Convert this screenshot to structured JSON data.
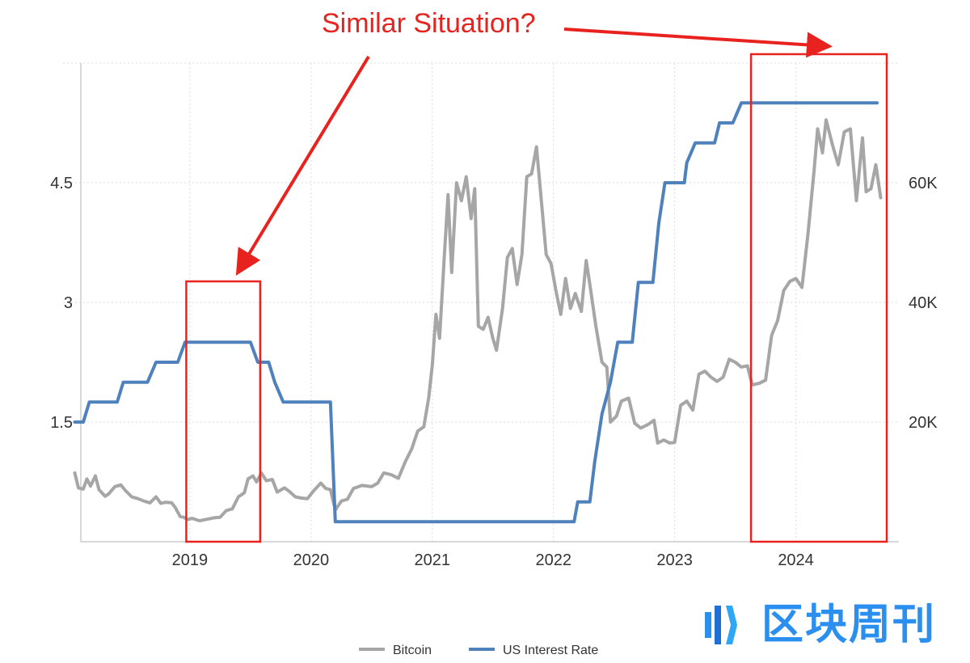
{
  "chart_data": {
    "type": "line",
    "title": "",
    "annotation": "Similar Situation?",
    "x_ticks": [
      "2019",
      "2020",
      "2021",
      "2022",
      "2023",
      "2024"
    ],
    "xlim": [
      2018.1,
      2024.85
    ],
    "left_axis": {
      "ticks": [
        "1.5",
        "3",
        "4.5"
      ],
      "tick_values": [
        1.5,
        3,
        4.5
      ],
      "ylim": [
        0,
        6
      ]
    },
    "right_axis": {
      "ticks": [
        "20K",
        "40K",
        "60K"
      ],
      "tick_values": [
        20000,
        40000,
        60000
      ],
      "ylim": [
        0,
        80000
      ]
    },
    "grid": true,
    "legend_position": "bottom-center",
    "highlight_ranges": [
      [
        2018.97,
        2019.58
      ],
      [
        2023.63,
        2024.75
      ]
    ],
    "series": [
      {
        "name": "Bitcoin",
        "axis": "right",
        "color": "#a6a6a6",
        "points": [
          [
            2018.05,
            11500
          ],
          [
            2018.08,
            9000
          ],
          [
            2018.12,
            8800
          ],
          [
            2018.15,
            10500
          ],
          [
            2018.18,
            9300
          ],
          [
            2018.22,
            11000
          ],
          [
            2018.25,
            8700
          ],
          [
            2018.3,
            7600
          ],
          [
            2018.33,
            8000
          ],
          [
            2018.38,
            9200
          ],
          [
            2018.43,
            9500
          ],
          [
            2018.47,
            8500
          ],
          [
            2018.52,
            7500
          ],
          [
            2018.57,
            7200
          ],
          [
            2018.62,
            6800
          ],
          [
            2018.67,
            6500
          ],
          [
            2018.72,
            7500
          ],
          [
            2018.76,
            6400
          ],
          [
            2018.8,
            6600
          ],
          [
            2018.85,
            6500
          ],
          [
            2018.88,
            5700
          ],
          [
            2018.92,
            4200
          ],
          [
            2018.95,
            4100
          ],
          [
            2018.98,
            3700
          ],
          [
            2019.02,
            3900
          ],
          [
            2019.08,
            3500
          ],
          [
            2019.15,
            3800
          ],
          [
            2019.2,
            4000
          ],
          [
            2019.25,
            4100
          ],
          [
            2019.3,
            5200
          ],
          [
            2019.35,
            5500
          ],
          [
            2019.4,
            7500
          ],
          [
            2019.45,
            8200
          ],
          [
            2019.48,
            10500
          ],
          [
            2019.52,
            11000
          ],
          [
            2019.55,
            10000
          ],
          [
            2019.59,
            11500
          ],
          [
            2019.63,
            10200
          ],
          [
            2019.68,
            10400
          ],
          [
            2019.72,
            8300
          ],
          [
            2019.78,
            9000
          ],
          [
            2019.82,
            8400
          ],
          [
            2019.87,
            7500
          ],
          [
            2019.92,
            7300
          ],
          [
            2019.97,
            7200
          ],
          [
            2020.02,
            8500
          ],
          [
            2020.08,
            9800
          ],
          [
            2020.12,
            8900
          ],
          [
            2020.16,
            8700
          ],
          [
            2020.2,
            5300
          ],
          [
            2020.25,
            6800
          ],
          [
            2020.3,
            7100
          ],
          [
            2020.35,
            8900
          ],
          [
            2020.42,
            9400
          ],
          [
            2020.5,
            9200
          ],
          [
            2020.55,
            9800
          ],
          [
            2020.6,
            11500
          ],
          [
            2020.66,
            11200
          ],
          [
            2020.72,
            10600
          ],
          [
            2020.78,
            13500
          ],
          [
            2020.83,
            15500
          ],
          [
            2020.88,
            18500
          ],
          [
            2020.93,
            19200
          ],
          [
            2020.97,
            24000
          ],
          [
            2021.0,
            29500
          ],
          [
            2021.03,
            38000
          ],
          [
            2021.06,
            34000
          ],
          [
            2021.1,
            48000
          ],
          [
            2021.13,
            58000
          ],
          [
            2021.16,
            45000
          ],
          [
            2021.2,
            60000
          ],
          [
            2021.24,
            57000
          ],
          [
            2021.28,
            61000
          ],
          [
            2021.32,
            54000
          ],
          [
            2021.35,
            59000
          ],
          [
            2021.38,
            36000
          ],
          [
            2021.42,
            35500
          ],
          [
            2021.46,
            37500
          ],
          [
            2021.5,
            34000
          ],
          [
            2021.53,
            32000
          ],
          [
            2021.58,
            39000
          ],
          [
            2021.62,
            47500
          ],
          [
            2021.66,
            49000
          ],
          [
            2021.7,
            43000
          ],
          [
            2021.74,
            48000
          ],
          [
            2021.78,
            61000
          ],
          [
            2021.82,
            61500
          ],
          [
            2021.86,
            66000
          ],
          [
            2021.9,
            57000
          ],
          [
            2021.94,
            48000
          ],
          [
            2021.98,
            46500
          ],
          [
            2022.02,
            42000
          ],
          [
            2022.06,
            38000
          ],
          [
            2022.1,
            44000
          ],
          [
            2022.14,
            39000
          ],
          [
            2022.18,
            41500
          ],
          [
            2022.23,
            38500
          ],
          [
            2022.27,
            47000
          ],
          [
            2022.3,
            43000
          ],
          [
            2022.35,
            36000
          ],
          [
            2022.4,
            30000
          ],
          [
            2022.44,
            29200
          ],
          [
            2022.47,
            20000
          ],
          [
            2022.52,
            21000
          ],
          [
            2022.56,
            23500
          ],
          [
            2022.62,
            24000
          ],
          [
            2022.67,
            19800
          ],
          [
            2022.72,
            19000
          ],
          [
            2022.78,
            19600
          ],
          [
            2022.83,
            20300
          ],
          [
            2022.86,
            16500
          ],
          [
            2022.91,
            17000
          ],
          [
            2022.96,
            16500
          ],
          [
            2023.0,
            16600
          ],
          [
            2023.05,
            22800
          ],
          [
            2023.1,
            23500
          ],
          [
            2023.15,
            22000
          ],
          [
            2023.2,
            28000
          ],
          [
            2023.25,
            28500
          ],
          [
            2023.3,
            27500
          ],
          [
            2023.35,
            26800
          ],
          [
            2023.4,
            27500
          ],
          [
            2023.45,
            30500
          ],
          [
            2023.5,
            30000
          ],
          [
            2023.55,
            29200
          ],
          [
            2023.6,
            29400
          ],
          [
            2023.64,
            26200
          ],
          [
            2023.7,
            26500
          ],
          [
            2023.75,
            27000
          ],
          [
            2023.8,
            34500
          ],
          [
            2023.85,
            37000
          ],
          [
            2023.9,
            42000
          ],
          [
            2023.95,
            43500
          ],
          [
            2024.0,
            44000
          ],
          [
            2024.05,
            42500
          ],
          [
            2024.1,
            51500
          ],
          [
            2024.15,
            62000
          ],
          [
            2024.18,
            69000
          ],
          [
            2024.22,
            65000
          ],
          [
            2024.25,
            70500
          ],
          [
            2024.3,
            66500
          ],
          [
            2024.35,
            63000
          ],
          [
            2024.4,
            68500
          ],
          [
            2024.45,
            69000
          ],
          [
            2024.5,
            57000
          ],
          [
            2024.55,
            67500
          ],
          [
            2024.58,
            58500
          ],
          [
            2024.62,
            59000
          ],
          [
            2024.66,
            63000
          ],
          [
            2024.7,
            57500
          ]
        ]
      },
      {
        "name": "US Interest Rate",
        "axis": "left",
        "color": "#4f81bd",
        "points": [
          [
            2018.05,
            1.5
          ],
          [
            2018.12,
            1.5
          ],
          [
            2018.17,
            1.75
          ],
          [
            2018.4,
            1.75
          ],
          [
            2018.45,
            2.0
          ],
          [
            2018.65,
            2.0
          ],
          [
            2018.72,
            2.25
          ],
          [
            2018.9,
            2.25
          ],
          [
            2018.96,
            2.5
          ],
          [
            2019.5,
            2.5
          ],
          [
            2019.56,
            2.25
          ],
          [
            2019.65,
            2.25
          ],
          [
            2019.7,
            2.0
          ],
          [
            2019.77,
            1.75
          ],
          [
            2020.16,
            1.75
          ],
          [
            2020.2,
            0.25
          ],
          [
            2022.17,
            0.25
          ],
          [
            2022.2,
            0.5
          ],
          [
            2022.3,
            0.5
          ],
          [
            2022.34,
            1.0
          ],
          [
            2022.4,
            1.6
          ],
          [
            2022.47,
            2.0
          ],
          [
            2022.53,
            2.5
          ],
          [
            2022.65,
            2.5
          ],
          [
            2022.7,
            3.25
          ],
          [
            2022.82,
            3.25
          ],
          [
            2022.87,
            4.0
          ],
          [
            2022.92,
            4.5
          ],
          [
            2023.08,
            4.5
          ],
          [
            2023.1,
            4.75
          ],
          [
            2023.17,
            5.0
          ],
          [
            2023.33,
            5.0
          ],
          [
            2023.37,
            5.25
          ],
          [
            2023.48,
            5.25
          ],
          [
            2023.55,
            5.5
          ],
          [
            2024.67,
            5.5
          ]
        ]
      }
    ]
  },
  "watermark": {
    "text": "区块周刊"
  }
}
